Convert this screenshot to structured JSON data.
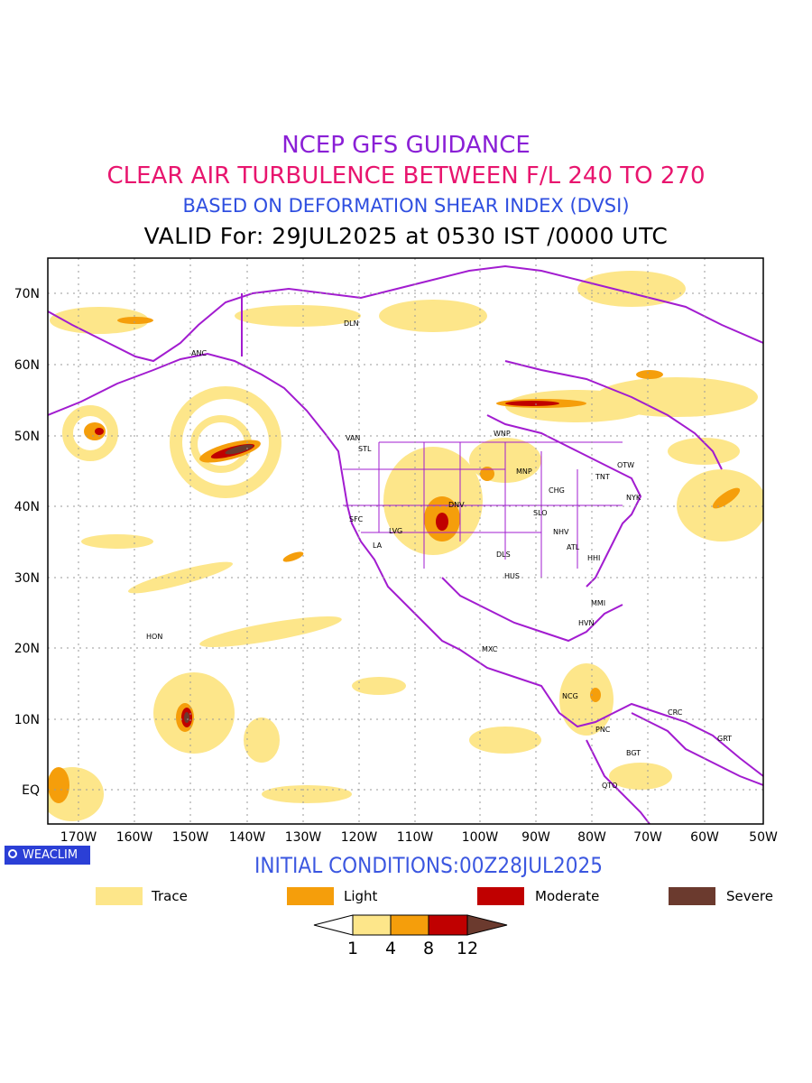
{
  "titles": {
    "line1": "NCEP GFS GUIDANCE",
    "line2": "CLEAR AIR TURBULENCE BETWEEN F/L 240 TO 270",
    "line3": "BASED ON DEFORMATION SHEAR INDEX (DVSI)",
    "line4": "VALID For: 29JUL2025 at 0530 IST /0000 UTC"
  },
  "colors": {
    "line1": "#8a1fd6",
    "line2": "#e8156e",
    "line3": "#2f4fe0",
    "line4": "#000000",
    "coastline": "#a21cd0",
    "trace": "#fde68a",
    "light": "#f59e0b",
    "moderate": "#c00000",
    "severe": "#6b3a2e",
    "initial_text": "#3b57e0"
  },
  "map": {
    "lat_labels": [
      "70N",
      "60N",
      "50N",
      "40N",
      "30N",
      "20N",
      "10N",
      "EQ"
    ],
    "lon_labels": [
      "170W",
      "160W",
      "150W",
      "140W",
      "130W",
      "120W",
      "110W",
      "100W",
      "90W",
      "80W",
      "70W",
      "60W",
      "50W"
    ],
    "cities": [
      "DLN",
      "ANC",
      "VAN",
      "STL",
      "WNP",
      "OTW",
      "TNT",
      "MNP",
      "CHG",
      "NYK",
      "DNV",
      "SFC",
      "LVG",
      "SLO",
      "NHV",
      "LA",
      "ATL",
      "DLS",
      "HHI",
      "HUS",
      "MMI",
      "HVN",
      "HON",
      "MXC",
      "NCG",
      "CRC",
      "PNC",
      "GRT",
      "BGT",
      "QTO"
    ]
  },
  "logo": "WEACLIM",
  "initial_conditions": "INITIAL CONDITIONS:00Z28JUL2025",
  "legend": [
    {
      "label": "Trace",
      "color": "#fde68a"
    },
    {
      "label": "Light",
      "color": "#f59e0b"
    },
    {
      "label": "Moderate",
      "color": "#c00000"
    },
    {
      "label": "Severe",
      "color": "#6b3a2e"
    }
  ],
  "colorbar_ticks": [
    "1",
    "4",
    "8",
    "12"
  ]
}
